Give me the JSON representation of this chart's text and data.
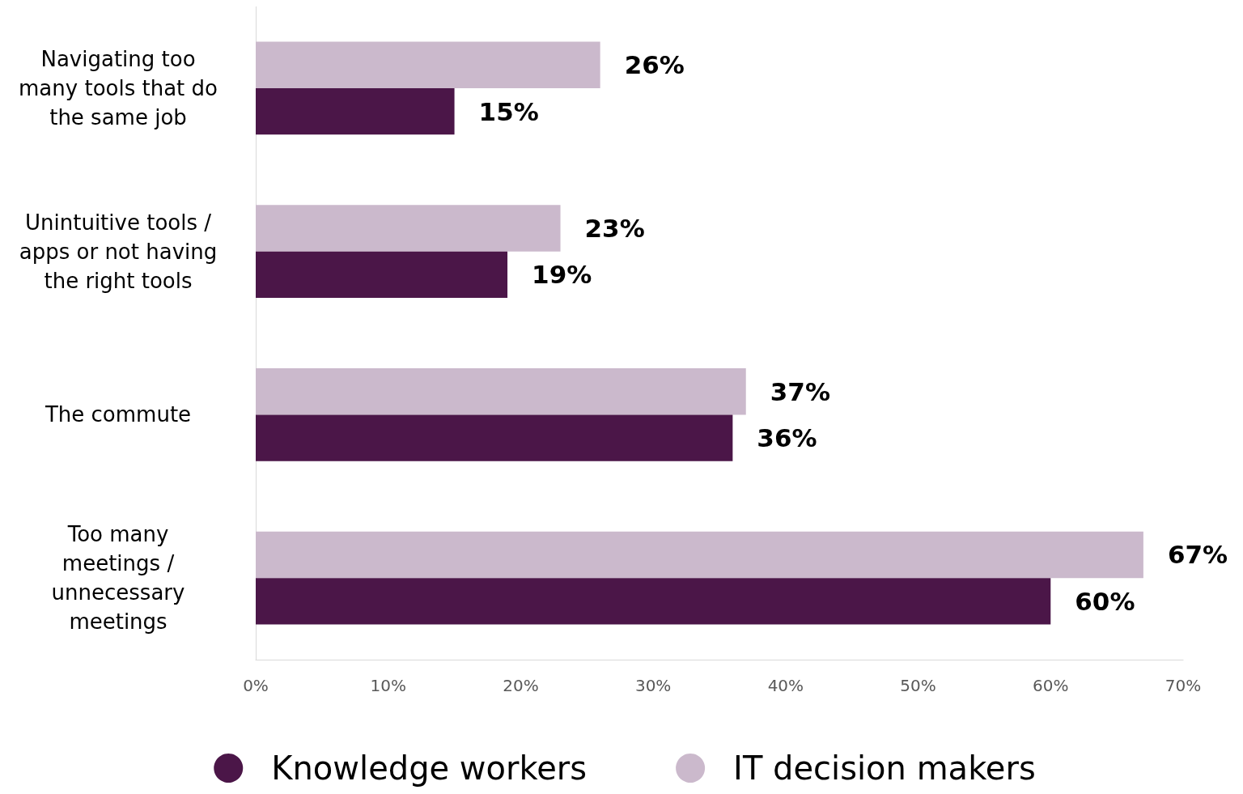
{
  "chart_data": {
    "type": "bar",
    "orientation": "horizontal",
    "categories": [
      "Navigating too\nmany tools that do\nthe same job",
      "Unintuitive tools /\napps or not having\nthe right tools",
      "The commute",
      "Too many\nmeetings /\nunnecessary\nmeetings"
    ],
    "series": [
      {
        "name": "Knowledge workers",
        "color": "#4b1648",
        "values": [
          15,
          19,
          36,
          60
        ],
        "value_labels": [
          "15%",
          "19%",
          "36%",
          "60%"
        ]
      },
      {
        "name": "IT decision makers",
        "color": "#cbb9cc",
        "values": [
          26,
          23,
          37,
          67
        ],
        "value_labels": [
          "26%",
          "23%",
          "37%",
          "67%"
        ]
      }
    ],
    "xlim": [
      0,
      70
    ],
    "xticks": [
      {
        "value": 0,
        "label": "0%"
      },
      {
        "value": 10,
        "label": "10%"
      },
      {
        "value": 20,
        "label": "20%"
      },
      {
        "value": 30,
        "label": "30%"
      },
      {
        "value": 40,
        "label": "40%"
      },
      {
        "value": 50,
        "label": "50%"
      },
      {
        "value": 60,
        "label": "60%"
      },
      {
        "value": 70,
        "label": "70%"
      }
    ],
    "grid": false,
    "legend": "bottom"
  }
}
